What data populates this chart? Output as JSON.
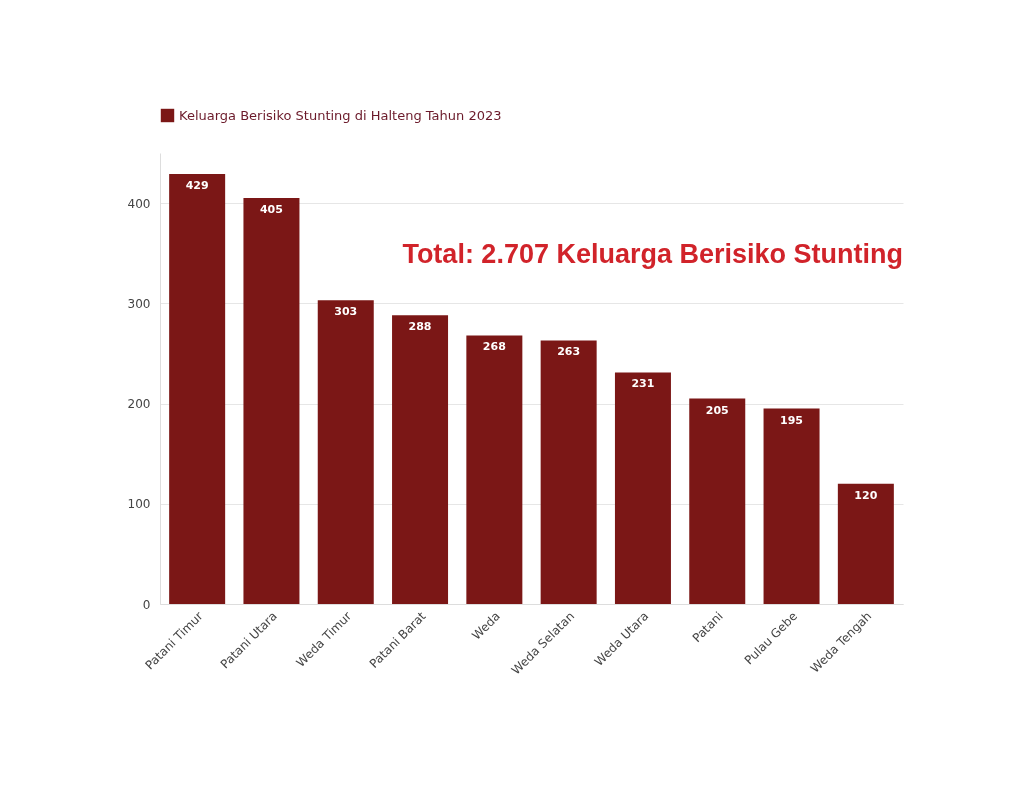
{
  "chart_data": {
    "type": "bar",
    "categories": [
      "Patani Timur",
      "Patani Utara",
      "Weda Timur",
      "Patani Barat",
      "Weda",
      "Weda Selatan",
      "Weda Utara",
      "Patani",
      "Pulau Gebe",
      "Weda Tengah"
    ],
    "series": [
      {
        "name": "Keluarga Berisiko Stunting di Halteng Tahun 2023",
        "color": "#7b1716",
        "values": [
          429,
          405,
          303,
          288,
          268,
          263,
          231,
          205,
          195,
          120
        ]
      }
    ],
    "ylim": [
      0,
      450
    ],
    "yticks": [
      0,
      100,
      200,
      300,
      400
    ],
    "grid": "y",
    "legend": "top left",
    "data_labels": true,
    "annotations": [
      "Total: 2.707 Keluarga Berisiko Stunting"
    ]
  }
}
